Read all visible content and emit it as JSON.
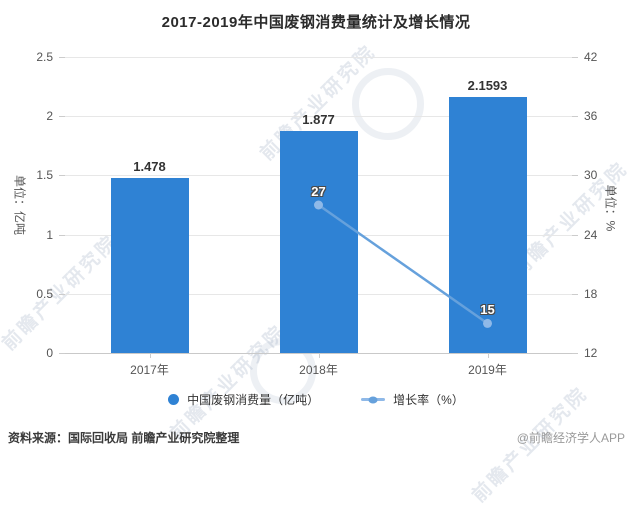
{
  "title": "2017-2019年中国废钢消费量统计及增长情况",
  "chart_data": {
    "type": "bar",
    "subtype": "bar-line-combo",
    "categories": [
      "2017年",
      "2018年",
      "2019年"
    ],
    "series": [
      {
        "name": "中国废钢消费量（亿吨）",
        "type": "bar",
        "axis": "left",
        "color": "#2f82d4",
        "values": [
          1.478,
          1.877,
          2.1593
        ],
        "labels": [
          "1.478",
          "1.877",
          "2.1593"
        ]
      },
      {
        "name": "增长率（%）",
        "type": "line",
        "axis": "right",
        "color": "#66a1dc",
        "marker_color": "#8fb9e8",
        "values": [
          null,
          27,
          15
        ],
        "labels": [
          "",
          "27",
          "15"
        ]
      }
    ],
    "left_axis": {
      "name": "单位：亿吨",
      "min": 0,
      "max": 2.5,
      "ticks": [
        0,
        0.5,
        1,
        1.5,
        2,
        2.5
      ],
      "tick_labels": [
        "0",
        "0.5",
        "1",
        "1.5",
        "2",
        "2.5"
      ]
    },
    "right_axis": {
      "name": "单位：%",
      "min": 12,
      "max": 42,
      "ticks": [
        12,
        18,
        24,
        30,
        36,
        42
      ],
      "tick_labels": [
        "12",
        "18",
        "24",
        "30",
        "36",
        "42"
      ]
    },
    "grid": true,
    "legend_position": "bottom"
  },
  "footer": {
    "source": "资料来源：国际回收局 前瞻产业研究院整理",
    "credit": "@前瞻经济学人APP"
  },
  "watermark": "前瞻产业研究院"
}
